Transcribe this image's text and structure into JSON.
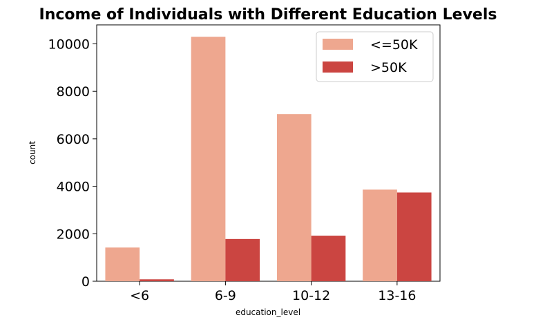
{
  "chart_data": {
    "type": "bar",
    "title": "Income of Individuals with Different Education Levels",
    "xlabel": "education_level",
    "ylabel": "count",
    "categories": [
      "<6",
      "6-9",
      "10-12",
      "13-16"
    ],
    "series": [
      {
        "name": "<=50K",
        "color": "#eea78f",
        "values": [
          1420,
          10300,
          7040,
          3860
        ]
      },
      {
        "name": ">50K",
        "color": "#cb4541",
        "values": [
          80,
          1780,
          1920,
          3740
        ]
      }
    ],
    "ylim": [
      0,
      10800
    ],
    "yticks": [
      0,
      2000,
      4000,
      6000,
      8000,
      10000
    ],
    "grid": false,
    "legend_position": "top-right"
  }
}
